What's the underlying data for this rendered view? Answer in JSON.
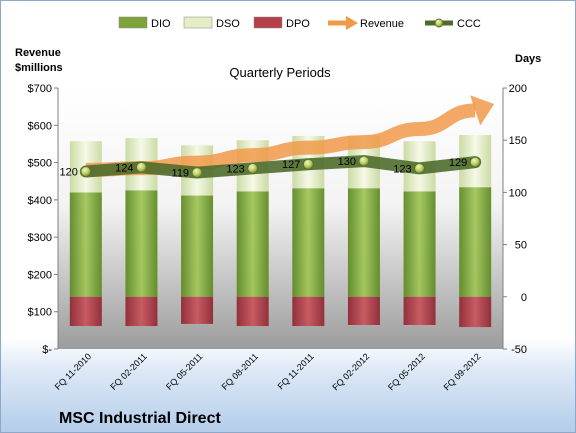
{
  "chart_data": {
    "type": "bar",
    "title": "Quarterly Periods",
    "footer": "MSC Industrial Direct",
    "y_left_label": [
      "Revenue",
      "$millions"
    ],
    "y_right_label": "Days",
    "y_left_ticks": [
      "$-",
      "$100",
      "$200",
      "$300",
      "$400",
      "$500",
      "$600",
      "$700"
    ],
    "y_left_range": [
      0,
      700
    ],
    "y_right_ticks": [
      "-50",
      "0",
      "50",
      "100",
      "150",
      "200"
    ],
    "y_right_range": [
      -50,
      200
    ],
    "grid": false,
    "legend_position": "top",
    "legend": [
      {
        "name": "DIO",
        "kind": "bar",
        "color": "#7fa33c"
      },
      {
        "name": "DSO",
        "kind": "bar",
        "color": "#e4edc4"
      },
      {
        "name": "DPO",
        "kind": "bar",
        "color": "#b5404a"
      },
      {
        "name": "Revenue",
        "kind": "arrow",
        "color": "#f19a4a"
      },
      {
        "name": "CCC",
        "kind": "line-marker",
        "color": "#4f6b2c"
      }
    ],
    "categories": [
      "FQ 11-2010",
      "FQ 02-2011",
      "FQ 05-2011",
      "FQ 08-2011",
      "FQ 11-2011",
      "FQ 02-2012",
      "FQ 05-2012",
      "FQ 09-2012"
    ],
    "series": [
      {
        "name": "DIO",
        "axis": "days",
        "values": [
          100,
          102,
          97,
          101,
          104,
          104,
          101,
          105
        ]
      },
      {
        "name": "DSO",
        "axis": "days",
        "values": [
          49,
          50,
          48,
          49,
          50,
          50,
          48,
          50
        ]
      },
      {
        "name": "DPO",
        "axis": "days",
        "values": [
          -28,
          -28,
          -26,
          -28,
          -28,
          -27,
          -27,
          -29
        ]
      },
      {
        "name": "Revenue",
        "axis": "revenue",
        "values": [
          480,
          485,
          500,
          520,
          540,
          555,
          590,
          640
        ]
      },
      {
        "name": "CCC",
        "axis": "days",
        "values": [
          120,
          124,
          119,
          123,
          127,
          130,
          123,
          129
        ]
      }
    ],
    "ccc_labels": [
      "120",
      "124",
      "119",
      "123",
      "127",
      "130",
      "123",
      "129"
    ]
  }
}
